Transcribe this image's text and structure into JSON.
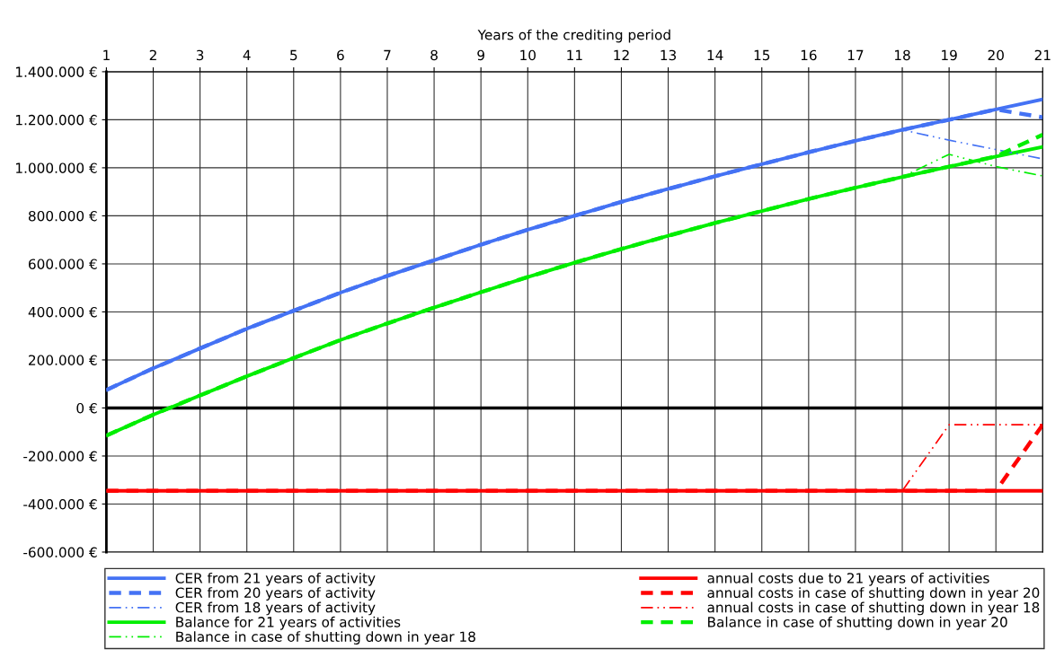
{
  "chart_data": {
    "type": "line",
    "xlabel": "Years of the crediting period",
    "x": [
      1,
      2,
      3,
      4,
      5,
      6,
      7,
      8,
      9,
      10,
      11,
      12,
      13,
      14,
      15,
      16,
      17,
      18,
      19,
      20,
      21
    ],
    "xlim": [
      1,
      21
    ],
    "xticks": [
      1,
      2,
      3,
      4,
      5,
      6,
      7,
      8,
      9,
      10,
      11,
      12,
      13,
      14,
      15,
      16,
      17,
      18,
      19,
      20,
      21
    ],
    "ylim": [
      -600000,
      1400000
    ],
    "yticks": [
      {
        "value": -600000,
        "label": "-600.000 €"
      },
      {
        "value": -400000,
        "label": "-400.000 €"
      },
      {
        "value": -200000,
        "label": "-200.000 €"
      },
      {
        "value": 0,
        "label": "0 €"
      },
      {
        "value": 200000,
        "label": "200.000 €"
      },
      {
        "value": 400000,
        "label": "400.000 €"
      },
      {
        "value": 600000,
        "label": "600.000 €"
      },
      {
        "value": 800000,
        "label": "800.000 €"
      },
      {
        "value": 1000000,
        "label": "1.000.000 €"
      },
      {
        "value": 1200000,
        "label": "1.200.000 €"
      },
      {
        "value": 1400000,
        "label": "1.400.000 €"
      }
    ],
    "grid": true,
    "legend": "bottom",
    "marker": "none",
    "ref_lines": [
      {
        "axis": "y",
        "value": 0,
        "label": null,
        "color": "#000000"
      }
    ],
    "series": [
      {
        "name": "CER from 21 years of activity",
        "color": "#4472f4",
        "line_style": "solid",
        "values": [
          75000,
          165000,
          248000,
          330000,
          405000,
          480000,
          550000,
          615000,
          680000,
          742000,
          800000,
          858000,
          912000,
          965000,
          1015000,
          1065000,
          1112000,
          1158000,
          1200000,
          1243000,
          1285000
        ]
      },
      {
        "name": "CER from 20 years of activity",
        "color": "#4472f4",
        "line_style": "dashed",
        "values": [
          75000,
          165000,
          248000,
          330000,
          405000,
          480000,
          550000,
          615000,
          680000,
          742000,
          800000,
          858000,
          912000,
          965000,
          1015000,
          1065000,
          1112000,
          1158000,
          1200000,
          1243000,
          1210000
        ]
      },
      {
        "name": "CER from 18 years of activity",
        "color": "#4472f4",
        "line_style": "dashdot",
        "values": [
          75000,
          165000,
          248000,
          330000,
          405000,
          480000,
          550000,
          615000,
          680000,
          742000,
          800000,
          858000,
          912000,
          965000,
          1015000,
          1065000,
          1112000,
          1158000,
          1115000,
          1076000,
          1037000
        ]
      },
      {
        "name": "Balance for 21 years of activities",
        "color": "#00ee00",
        "line_style": "solid",
        "values": [
          -115000,
          -28000,
          52000,
          132000,
          208000,
          283000,
          352000,
          418000,
          482000,
          545000,
          605000,
          662000,
          717000,
          770000,
          820000,
          870000,
          917000,
          962000,
          1005000,
          1047000,
          1087000
        ]
      },
      {
        "name": "Balance in case of shutting down in year 18",
        "color": "#00ee00",
        "line_style": "dashdot",
        "values": [
          -115000,
          -28000,
          52000,
          132000,
          208000,
          283000,
          352000,
          418000,
          482000,
          545000,
          605000,
          662000,
          717000,
          770000,
          820000,
          870000,
          917000,
          962000,
          1056000,
          1005000,
          966000
        ]
      },
      {
        "name": "annual costs due to 21 years of activities",
        "color": "#ff0000",
        "line_style": "solid",
        "values": [
          -345000,
          -345000,
          -345000,
          -345000,
          -345000,
          -345000,
          -345000,
          -345000,
          -345000,
          -345000,
          -345000,
          -345000,
          -345000,
          -345000,
          -345000,
          -345000,
          -345000,
          -345000,
          -345000,
          -345000,
          -345000
        ]
      },
      {
        "name": "annual costs in case of shutting down in year 20",
        "color": "#ff0000",
        "line_style": "dashed",
        "values": [
          -345000,
          -345000,
          -345000,
          -345000,
          -345000,
          -345000,
          -345000,
          -345000,
          -345000,
          -345000,
          -345000,
          -345000,
          -345000,
          -345000,
          -345000,
          -345000,
          -345000,
          -345000,
          -345000,
          -345000,
          -70000
        ]
      },
      {
        "name": "annual costs in case of shutting down in year 18",
        "color": "#ff0000",
        "line_style": "dashdot",
        "values": [
          -345000,
          -345000,
          -345000,
          -345000,
          -345000,
          -345000,
          -345000,
          -345000,
          -345000,
          -345000,
          -345000,
          -345000,
          -345000,
          -345000,
          -345000,
          -345000,
          -345000,
          -345000,
          -70000,
          -70000,
          -70000
        ]
      },
      {
        "name": "Balance in case of shutting down in year 20",
        "color": "#00ee00",
        "line_style": "dashed",
        "values": [
          -115000,
          -28000,
          52000,
          132000,
          208000,
          283000,
          352000,
          418000,
          482000,
          545000,
          605000,
          662000,
          717000,
          770000,
          820000,
          870000,
          917000,
          962000,
          1005000,
          1047000,
          1138000
        ]
      }
    ]
  }
}
